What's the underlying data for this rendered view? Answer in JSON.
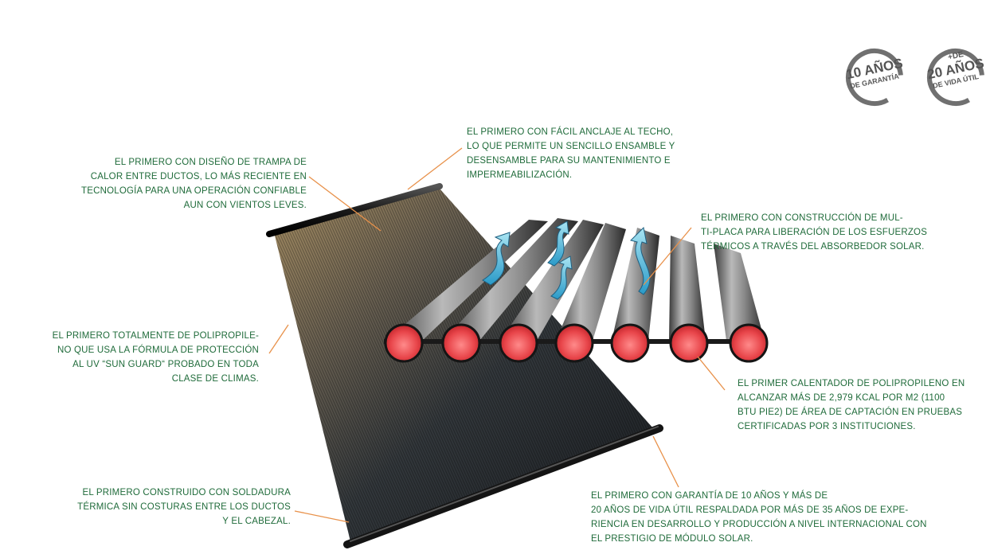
{
  "badges": [
    {
      "top": "10 AÑOS",
      "bottom": "DE GARANTÍA"
    },
    {
      "prefix": "+DE",
      "top": "20 AÑOS",
      "bottom": "DE VIDA ÚTIL"
    }
  ],
  "callouts": {
    "trap": [
      "EL PRIMERO CON DISEÑO DE TRAMPA DE",
      "CALOR ENTRE DUCTOS, LO MÁS RECIENTE EN",
      "TECNOLOGÍA PARA UNA OPERACIÓN CONFIABLE",
      "AUN CON VIENTOS LEVES."
    ],
    "roof": [
      "EL PRIMERO CON FÁCIL ANCLAJE AL TECHO,",
      "LO QUE PERMITE UN SENCILLO ENSAMBLE Y",
      "DESENSAMBLE PARA SU MANTENIMIENTO E",
      "IMPERMEABILIZACIÓN."
    ],
    "multiplate": [
      "EL PRIMERO CON CONSTRUCCIÓN DE MUL-",
      "TI-PLACA PARA LIBERACIÓN DE LOS ESFUERZOS",
      "TÉRMICOS A TRAVÉS DEL ABSORBEDOR SOLAR."
    ],
    "polypropylene": [
      "EL PRIMERO TOTALMENTE DE POLIPROPILE-",
      "NO QUE USA LA FÓRMULA DE PROTECCIÓN",
      "AL UV “SUN GUARD“ PROBADO EN TODA",
      "CLASE DE CLIMAS."
    ],
    "heater": [
      "EL PRIMER CALENTADOR DE POLIPROPILENO EN",
      "ALCANZAR MÁS DE 2,979 KCAL POR M2  (1100",
      "BTU PIE2) DE ÁREA DE CAPTACIÓN EN PRUEBAS",
      "CERTIFICADAS POR 3 INSTITUCIONES."
    ],
    "welding": [
      "EL PRIMERO CONSTRUIDO CON SOLDADURA",
      "TÉRMICA SIN COSTURAS ENTRE LOS DUCTOS",
      "Y EL CABEZAL."
    ],
    "warranty": [
      "EL PRIMERO CON GARANTÍA  DE 10 AÑOS Y MÁS DE",
      "20 AÑOS DE VIDA ÚTIL RESPALDADA POR MÁS DE 35 AÑOS DE EXPE-",
      "RIENCIA EN DESARROLLO Y PRODUCCIÓN A NIVEL INTERNACIONAL CON",
      "EL PRESTIGIO DE MÓDULO SOLAR."
    ]
  },
  "colors": {
    "text": "#1f6b3a",
    "leader": "#e8914a",
    "tube_cap": "#e8454a",
    "badge": "#707070"
  }
}
